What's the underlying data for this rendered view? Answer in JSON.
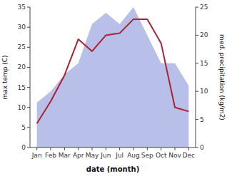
{
  "chart_data": {
    "type": "line",
    "categories": [
      "Jan",
      "Feb",
      "Mar",
      "Apr",
      "May",
      "Jun",
      "Jul",
      "Aug",
      "Sep",
      "Oct",
      "Nov",
      "Dec"
    ],
    "xlabel": "date (month)",
    "ylabel": "max temp (C)",
    "y2label": "med. precipitation (kg/m2)",
    "series": [
      {
        "type": "area",
        "axis": "y2",
        "color": "#b8bfe8",
        "values": [
          8,
          10,
          13,
          15,
          22,
          24,
          22,
          25,
          20,
          15,
          15,
          11
        ]
      },
      {
        "type": "line",
        "color": "#aa2233",
        "values": [
          6,
          11.5,
          18,
          27,
          24,
          28,
          28.5,
          32,
          32,
          26,
          10,
          9
        ]
      }
    ],
    "ylim": [
      0,
      35
    ],
    "yticks": [
      0,
      5,
      10,
      15,
      20,
      25,
      30,
      35
    ],
    "y2lim": [
      0,
      25
    ],
    "y2ticks": [
      0,
      5,
      10,
      15,
      20,
      25
    ]
  }
}
